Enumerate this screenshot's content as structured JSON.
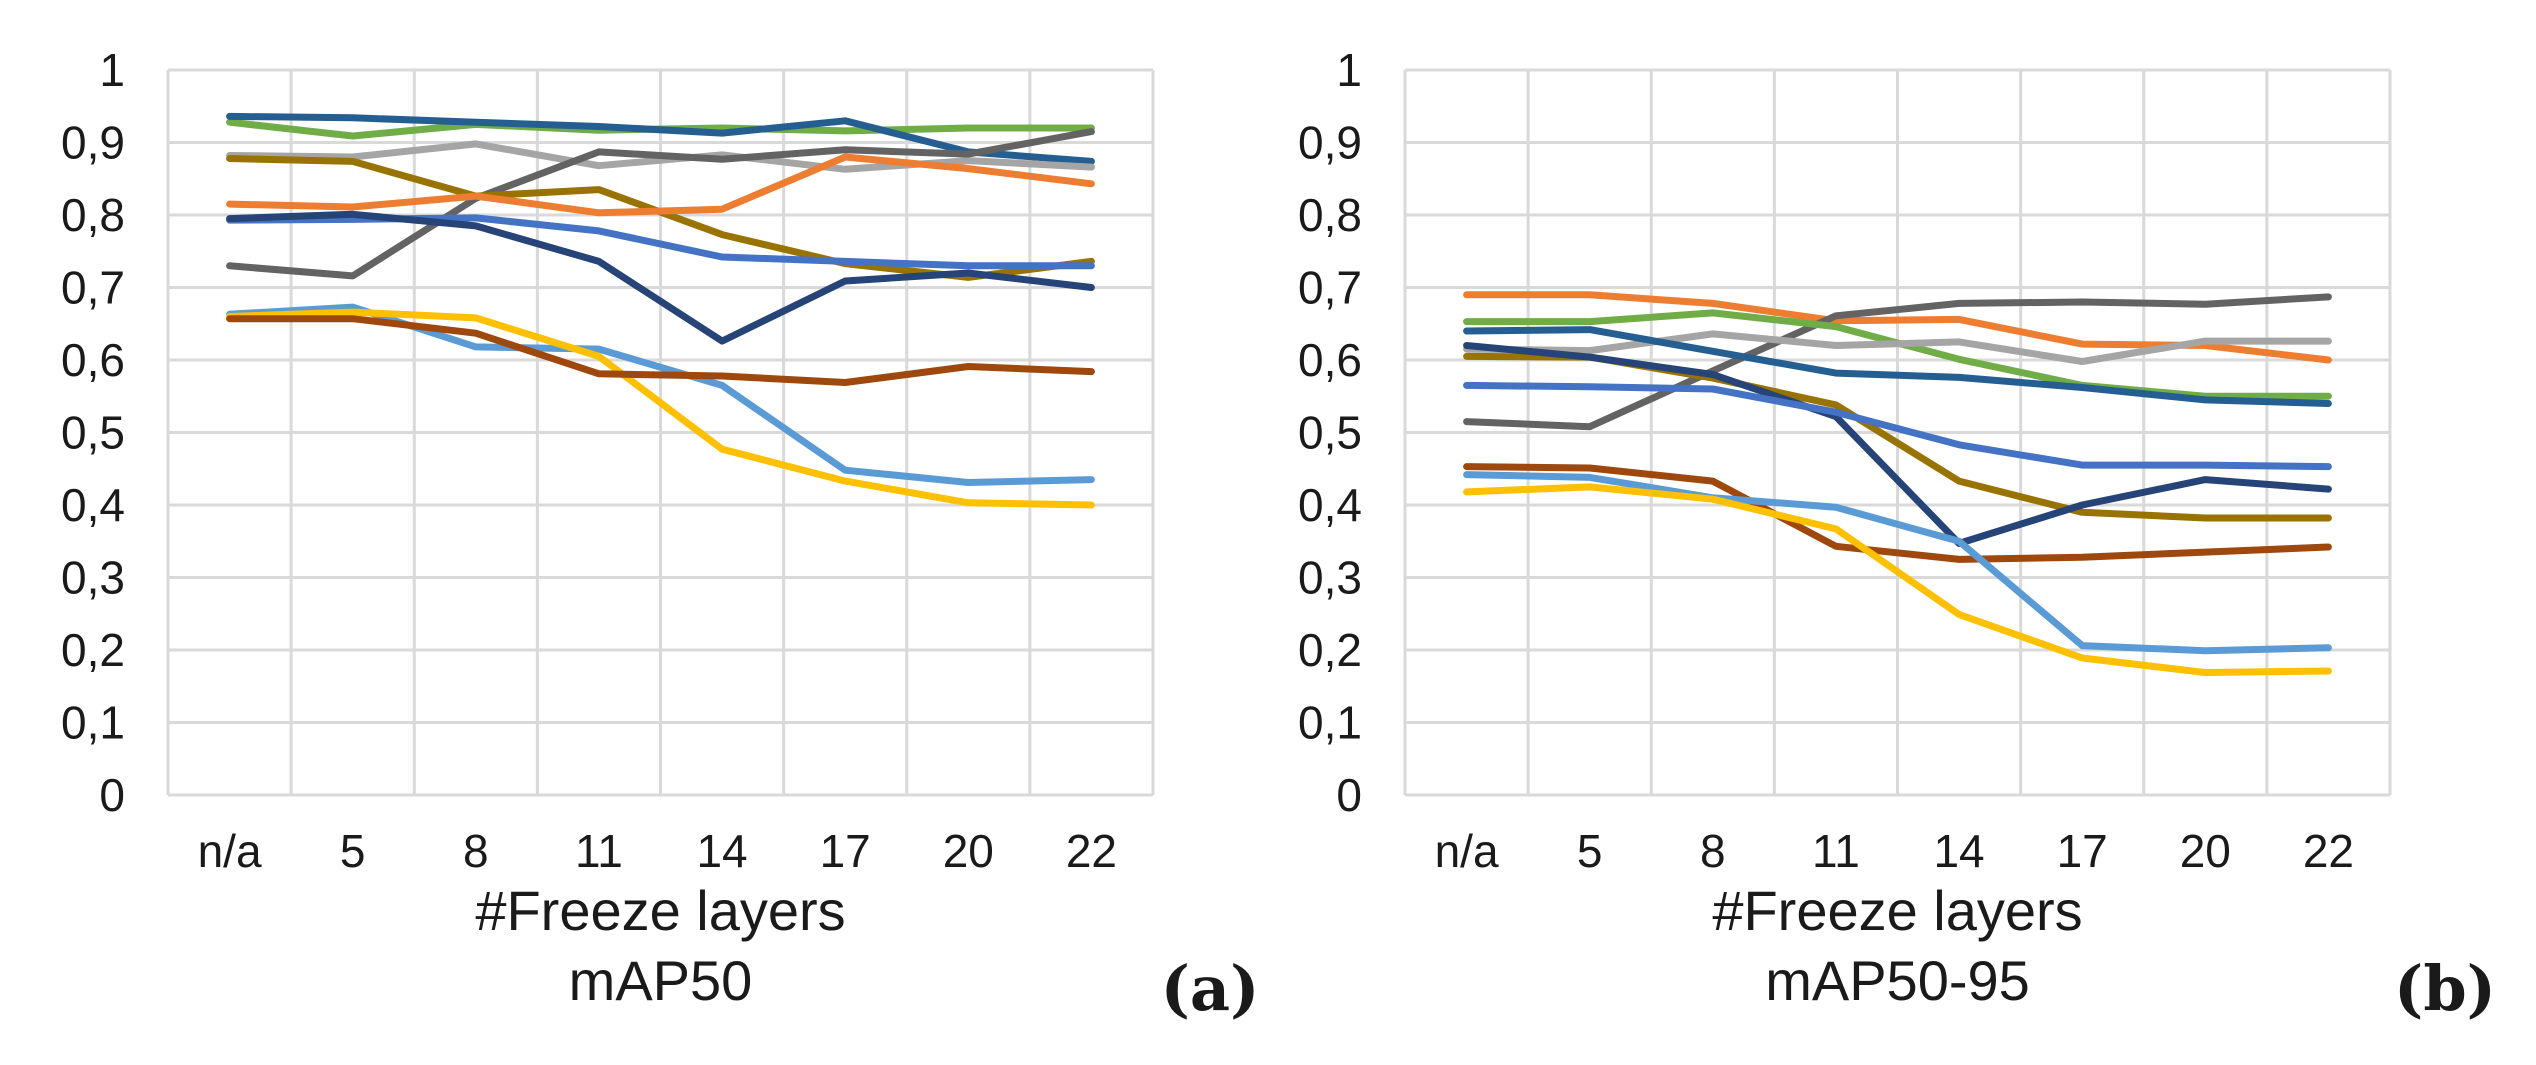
{
  "chart_data": [
    {
      "type": "line",
      "title": "mAP50",
      "xlabel": "#Freeze layers",
      "ylabel": "",
      "panel": "(a)",
      "categories": [
        "n/a",
        "5",
        "8",
        "11",
        "14",
        "17",
        "20",
        "22"
      ],
      "ylim": [
        0,
        1
      ],
      "yticks": [
        "0",
        "0,1",
        "0,2",
        "0,3",
        "0,4",
        "0,5",
        "0,6",
        "0,7",
        "0,8",
        "0,9",
        "1"
      ],
      "grid": true,
      "series": [
        {
          "name": "green",
          "color": "#70ad47",
          "values": [
            0.928,
            0.909,
            0.925,
            0.917,
            0.92,
            0.916,
            0.92,
            0.92
          ]
        },
        {
          "name": "steel blue",
          "color": "#255e91",
          "values": [
            0.936,
            0.934,
            0.928,
            0.922,
            0.913,
            0.93,
            0.887,
            0.874
          ]
        },
        {
          "name": "light gray",
          "color": "#a5a5a5",
          "values": [
            0.882,
            0.88,
            0.898,
            0.868,
            0.883,
            0.863,
            0.875,
            0.866
          ]
        },
        {
          "name": "dark gray",
          "color": "#636363",
          "values": [
            0.73,
            0.716,
            0.823,
            0.887,
            0.877,
            0.89,
            0.884,
            0.915
          ]
        },
        {
          "name": "olive",
          "color": "#997300",
          "values": [
            0.878,
            0.874,
            0.826,
            0.835,
            0.773,
            0.733,
            0.714,
            0.736
          ]
        },
        {
          "name": "orange",
          "color": "#ed7d31",
          "values": [
            0.815,
            0.811,
            0.826,
            0.803,
            0.808,
            0.88,
            0.864,
            0.843
          ]
        },
        {
          "name": "blue",
          "color": "#4472c4",
          "values": [
            0.793,
            0.794,
            0.796,
            0.778,
            0.742,
            0.736,
            0.73,
            0.73
          ]
        },
        {
          "name": "navy",
          "color": "#264478",
          "values": [
            0.795,
            0.801,
            0.785,
            0.736,
            0.626,
            0.709,
            0.72,
            0.7
          ]
        },
        {
          "name": "light blue",
          "color": "#5b9bd5",
          "values": [
            0.663,
            0.673,
            0.618,
            0.615,
            0.565,
            0.448,
            0.431,
            0.435
          ]
        },
        {
          "name": "yellow",
          "color": "#ffc000",
          "values": [
            0.66,
            0.666,
            0.658,
            0.605,
            0.477,
            0.433,
            0.403,
            0.4
          ]
        },
        {
          "name": "brown",
          "color": "#9e480e",
          "values": [
            0.657,
            0.657,
            0.637,
            0.581,
            0.578,
            0.569,
            0.591,
            0.584
          ]
        }
      ]
    },
    {
      "type": "line",
      "title": "mAP50-95",
      "xlabel": "#Freeze layers",
      "ylabel": "",
      "panel": "(b)",
      "categories": [
        "n/a",
        "5",
        "8",
        "11",
        "14",
        "17",
        "20",
        "22"
      ],
      "ylim": [
        0,
        1
      ],
      "yticks": [
        "0",
        "0,1",
        "0,2",
        "0,3",
        "0,4",
        "0,5",
        "0,6",
        "0,7",
        "0,8",
        "0,9",
        "1"
      ],
      "grid": true,
      "series": [
        {
          "name": "orange",
          "color": "#ed7d31",
          "values": [
            0.69,
            0.69,
            0.678,
            0.654,
            0.656,
            0.622,
            0.62,
            0.6
          ]
        },
        {
          "name": "dark gray",
          "color": "#636363",
          "values": [
            0.515,
            0.508,
            0.585,
            0.661,
            0.678,
            0.68,
            0.677,
            0.687
          ]
        },
        {
          "name": "green",
          "color": "#70ad47",
          "values": [
            0.653,
            0.653,
            0.665,
            0.646,
            0.601,
            0.565,
            0.55,
            0.55
          ]
        },
        {
          "name": "light gray",
          "color": "#a5a5a5",
          "values": [
            0.615,
            0.613,
            0.636,
            0.62,
            0.625,
            0.598,
            0.626,
            0.626
          ]
        },
        {
          "name": "steel blue",
          "color": "#255e91",
          "values": [
            0.64,
            0.642,
            0.612,
            0.582,
            0.576,
            0.562,
            0.545,
            0.54
          ]
        },
        {
          "name": "olive",
          "color": "#997300",
          "values": [
            0.605,
            0.604,
            0.575,
            0.538,
            0.433,
            0.39,
            0.382,
            0.382
          ]
        },
        {
          "name": "navy",
          "color": "#264478",
          "values": [
            0.62,
            0.604,
            0.58,
            0.522,
            0.347,
            0.4,
            0.435,
            0.422
          ]
        },
        {
          "name": "blue",
          "color": "#4472c4",
          "values": [
            0.565,
            0.563,
            0.56,
            0.528,
            0.483,
            0.455,
            0.455,
            0.453
          ]
        },
        {
          "name": "brown",
          "color": "#9e480e",
          "values": [
            0.453,
            0.451,
            0.433,
            0.343,
            0.325,
            0.328,
            0.335,
            0.342
          ]
        },
        {
          "name": "light blue",
          "color": "#5b9bd5",
          "values": [
            0.442,
            0.438,
            0.41,
            0.397,
            0.35,
            0.206,
            0.199,
            0.203
          ]
        },
        {
          "name": "yellow",
          "color": "#ffc000",
          "values": [
            0.418,
            0.425,
            0.408,
            0.367,
            0.249,
            0.189,
            0.169,
            0.171
          ]
        }
      ]
    }
  ]
}
